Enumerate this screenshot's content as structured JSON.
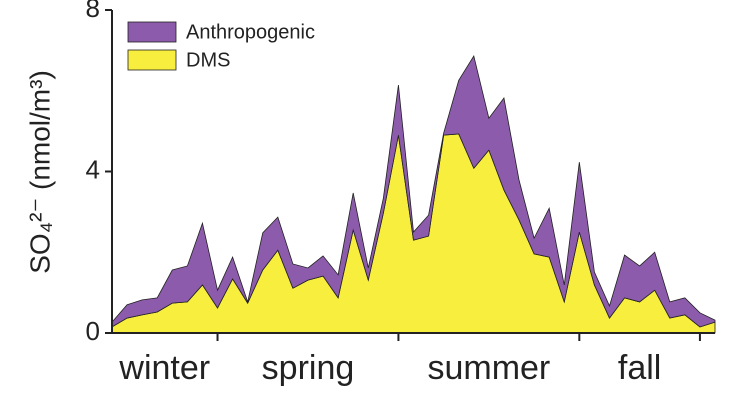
{
  "chart_data": {
    "type": "stacked_area",
    "ylabel": "SO₄²⁻ (nmol/m³)",
    "season_labels": [
      "winter",
      "spring",
      "summer",
      "fall"
    ],
    "xlim": [
      0,
      40
    ],
    "xticks": [
      7,
      19,
      31,
      39
    ],
    "ylim": [
      0,
      8
    ],
    "yticks": [
      0,
      4,
      8
    ],
    "legend": "upper left",
    "series": [
      {
        "name": "DMS",
        "color": "#f7ee3e",
        "values": [
          0.15,
          0.37,
          0.45,
          0.52,
          0.74,
          0.77,
          1.19,
          0.62,
          1.34,
          0.74,
          1.56,
          2.05,
          1.11,
          1.31,
          1.41,
          0.87,
          2.55,
          1.31,
          2.97,
          4.9,
          2.3,
          2.4,
          4.9,
          4.93,
          4.08,
          4.53,
          3.54,
          2.8,
          1.96,
          1.88,
          0.77,
          2.5,
          1.19,
          0.37,
          0.87,
          0.77,
          1.06,
          0.37,
          0.45,
          0.15,
          0.27
        ]
      },
      {
        "name": "Anthropogenic",
        "color": "#8c5bab",
        "values": [
          0.12,
          0.33,
          0.37,
          0.35,
          0.82,
          0.89,
          1.53,
          0.44,
          0.54,
          0.03,
          0.92,
          0.82,
          0.6,
          0.3,
          0.5,
          0.57,
          0.92,
          0.3,
          0.37,
          1.24,
          0.2,
          0.52,
          0.05,
          1.33,
          2.78,
          0.79,
          2.28,
          0.99,
          0.39,
          1.21,
          0.42,
          1.73,
          0.32,
          0.3,
          1.06,
          0.89,
          0.94,
          0.4,
          0.42,
          0.35,
          0.05
        ]
      }
    ]
  }
}
